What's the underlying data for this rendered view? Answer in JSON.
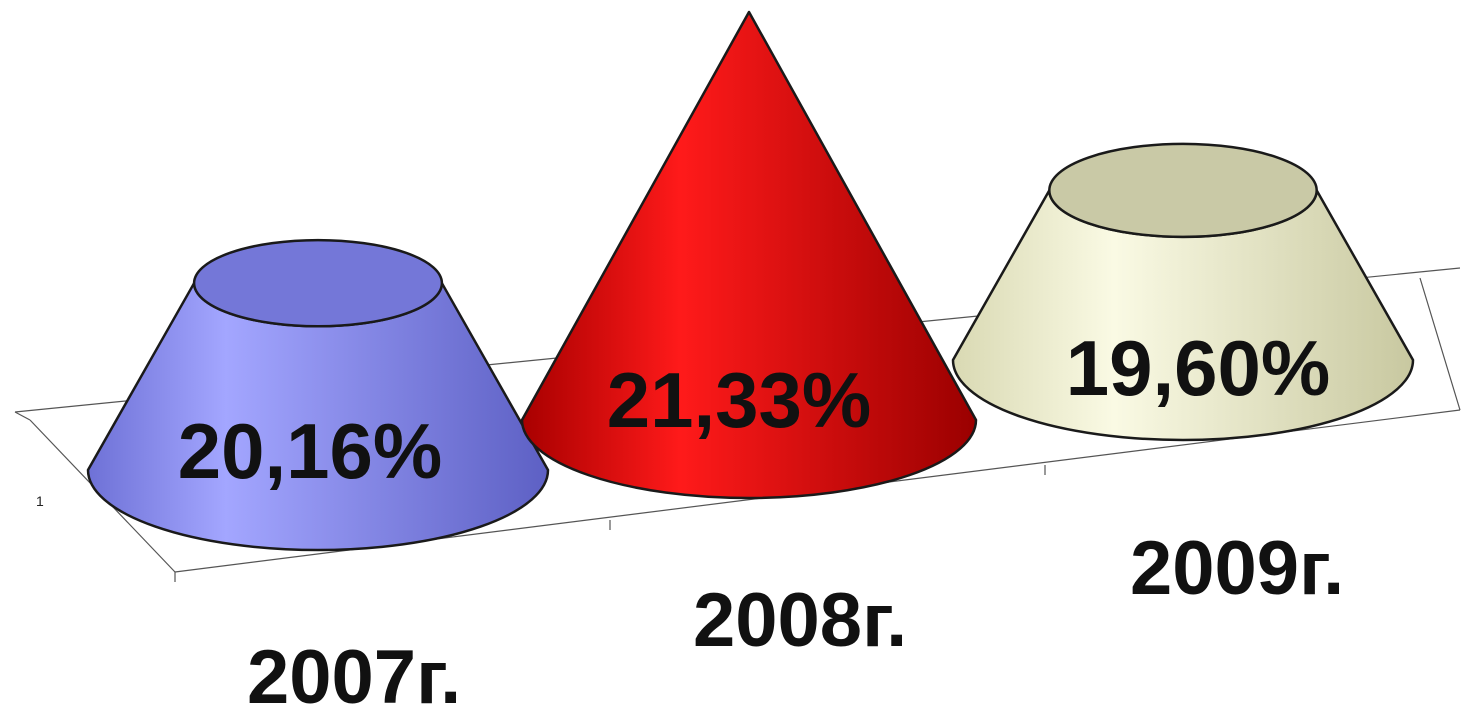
{
  "chart_data": {
    "type": "bar",
    "categories": [
      "2007г.",
      "2008г.",
      "2009г."
    ],
    "values": [
      20.16,
      21.33,
      19.6
    ],
    "value_labels": [
      "20,16%",
      "21,33%",
      "19,60%"
    ],
    "y_tick_labels": [
      "1"
    ],
    "series_colors": [
      "#8f92f0",
      "#e20000",
      "#eeeed0"
    ],
    "grid": false,
    "legend": "none"
  }
}
